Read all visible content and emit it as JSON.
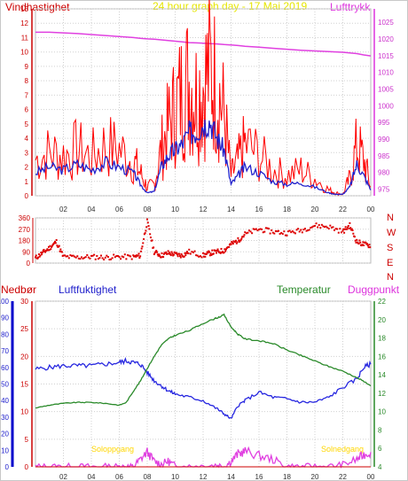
{
  "header": {
    "wind_label": "Vindhastighet",
    "title": "24 hour graph day - 17 Mai 2019",
    "pressure_label": "Lufttrykk"
  },
  "lower_labels": {
    "rain": "Nedbør",
    "humidity": "Luftfuktighet",
    "temperature": "Temperatur",
    "dewpoint": "Duggpunkt"
  },
  "sun_labels": {
    "sunrise": "Soloppgang",
    "sunset": "Solnedgang"
  },
  "colors": {
    "wind": "#ff0000",
    "wind_avg": "#2222cc",
    "pressure": "#e040e0",
    "direction": "#dd0000",
    "humidity": "#2828e0",
    "temperature": "#2a8a2a",
    "dewpoint": "#e040e0",
    "rain": "#0000cc",
    "sun": "#ffd700"
  },
  "chart_data": [
    {
      "type": "line",
      "id": "wind_pressure",
      "title": "24 hour graph day - 17 Mai 2019",
      "ylabel": "Vindhastighet",
      "y2label": "Lufttrykk",
      "xticks": [
        "02",
        "04",
        "06",
        "08",
        "10",
        "12",
        "14",
        "16",
        "18",
        "20",
        "22",
        "00"
      ],
      "ylim": [
        0,
        13
      ],
      "yticks": [
        0,
        1,
        2,
        3,
        4,
        5,
        6,
        7,
        8,
        9,
        10,
        11,
        12,
        13
      ],
      "y2lim": [
        973,
        1029
      ],
      "y2ticks": [
        975,
        980,
        985,
        990,
        995,
        1000,
        1005,
        1010,
        1015,
        1020,
        1025
      ],
      "x": [
        0,
        1,
        2,
        3,
        4,
        5,
        6,
        7,
        7.5,
        8,
        8.5,
        9,
        9.5,
        10,
        10.5,
        11,
        11.5,
        12,
        12.5,
        13,
        13.5,
        14,
        14.5,
        15,
        16,
        17,
        18,
        19,
        20,
        21,
        21.5,
        22,
        22.5,
        23,
        23.5,
        24
      ],
      "series": [
        {
          "name": "Vindhastighet",
          "values": [
            2.5,
            3,
            2.8,
            3.2,
            2.7,
            3.5,
            3.2,
            2.4,
            1.6,
            0.6,
            0.8,
            3.2,
            4.8,
            6,
            7.2,
            8,
            7,
            7.8,
            8.8,
            7.6,
            5.6,
            1.4,
            2.4,
            3.6,
            2.8,
            1.8,
            1.4,
            1.8,
            1.2,
            0.4,
            0.2,
            0.1,
            1.2,
            3.5,
            2.5,
            0.6
          ]
        },
        {
          "name": "Middelvind",
          "values": [
            1.6,
            2,
            1.8,
            2.2,
            1.8,
            2.3,
            2,
            1.6,
            0.8,
            0.2,
            0.3,
            2,
            2.8,
            3.2,
            3.6,
            4.4,
            4.4,
            5,
            5.2,
            4,
            3.2,
            0.8,
            1.4,
            2,
            1.6,
            1,
            0.8,
            0.9,
            0.6,
            0.2,
            0.1,
            0.1,
            0.6,
            2.2,
            1.4,
            0.4
          ]
        },
        {
          "name": "Lufttrykk",
          "values": [
            1022,
            1022,
            1021.8,
            1021.6,
            1021.3,
            1021,
            1020.7,
            1020.4,
            1020.2,
            1020,
            1019.9,
            1019.7,
            1019.5,
            1019.3,
            1019.1,
            1018.9,
            1018.8,
            1018.7,
            1018.6,
            1018.5,
            1018.3,
            1018.2,
            1018,
            1017.8,
            1017.5,
            1017.2,
            1016.9,
            1016.6,
            1016.4,
            1016.2,
            1016.1,
            1016,
            1015.8,
            1015.6,
            1015.2,
            1014.9
          ]
        }
      ]
    },
    {
      "type": "scatter",
      "id": "wind_direction",
      "ylim": [
        0,
        360
      ],
      "yticks": [
        0,
        90,
        180,
        270,
        360
      ],
      "ytick_labels": [
        "0",
        "90",
        "180",
        "270",
        "360"
      ],
      "right_labels": [
        "N",
        "W",
        "S",
        "E",
        "N"
      ],
      "x": [
        0,
        0.5,
        1,
        1.5,
        2,
        3,
        4,
        5,
        6,
        7,
        7.5,
        8,
        8.5,
        9,
        9.5,
        10,
        10.5,
        11,
        12,
        12.5,
        13,
        13.5,
        14,
        14.5,
        15,
        16,
        17,
        18,
        19,
        20,
        21,
        22,
        22.5,
        23,
        23.5,
        24
      ],
      "series": [
        {
          "name": "Vindretning",
          "values": [
            40,
            80,
            120,
            170,
            50,
            45,
            50,
            45,
            50,
            48,
            60,
            330,
            90,
            60,
            80,
            70,
            60,
            90,
            60,
            80,
            90,
            100,
            150,
            180,
            230,
            270,
            250,
            240,
            260,
            300,
            290,
            250,
            300,
            170,
            150,
            140
          ]
        }
      ]
    },
    {
      "type": "line",
      "id": "humidity_temperature",
      "xticks": [
        "02",
        "04",
        "06",
        "08",
        "10",
        "12",
        "14",
        "16",
        "18",
        "20",
        "22",
        "00"
      ],
      "ylim": [
        0,
        30
      ],
      "yticks": [
        0,
        5,
        10,
        15,
        20,
        25,
        30
      ],
      "y_rain_lim": [
        0,
        100
      ],
      "y_rain_ticks": [
        0,
        10,
        20,
        30,
        40,
        50,
        60,
        70,
        80,
        90,
        100
      ],
      "y2lim": [
        4,
        22
      ],
      "y2ticks": [
        4,
        6,
        8,
        10,
        12,
        14,
        16,
        18,
        20,
        22
      ],
      "x": [
        0,
        1,
        2,
        3,
        4,
        5,
        6,
        6.5,
        7,
        7.5,
        8,
        8.5,
        9,
        9.5,
        10,
        11,
        12,
        13,
        13.5,
        14,
        14.5,
        15,
        16,
        17,
        18,
        19,
        20,
        21,
        22,
        23,
        23.5,
        24
      ],
      "series": [
        {
          "name": "Luftfuktighet",
          "values": [
            59,
            60,
            61,
            61,
            61,
            62,
            63,
            64,
            63,
            62,
            57,
            52,
            49,
            46,
            44,
            42,
            40,
            35,
            32,
            29,
            37,
            40,
            45,
            42,
            41,
            39,
            39,
            42,
            48,
            53,
            60,
            62
          ]
        },
        {
          "name": "Temperatur",
          "values": [
            10.4,
            10.7,
            10.9,
            11,
            11,
            10.9,
            10.7,
            11,
            12.2,
            13.3,
            14.7,
            16,
            17.2,
            17.9,
            18.3,
            18.8,
            19.6,
            20.2,
            20.5,
            19.2,
            18.4,
            17.9,
            17.7,
            17.4,
            16.7,
            16.1,
            15.5,
            14.9,
            14.4,
            13.7,
            13.3,
            12.8
          ]
        },
        {
          "name": "Duggpunkt",
          "values": [
            4,
            4,
            4,
            4,
            4,
            4,
            4,
            4,
            4,
            4.8,
            5.6,
            4.6,
            4.3,
            4.6,
            4.1,
            4,
            4.1,
            4.2,
            4,
            4.6,
            5.4,
            5.7,
            5.2,
            4.8,
            4,
            4,
            4,
            4,
            4.2,
            4.8,
            5.3,
            5.6
          ]
        },
        {
          "name": "Nedbør",
          "values": [
            0,
            0,
            0,
            0,
            0,
            0,
            0,
            0,
            0,
            0,
            0,
            0,
            0,
            0,
            0,
            0,
            0,
            0,
            0,
            0,
            0,
            0,
            0,
            0,
            0,
            0,
            0,
            0,
            0,
            0,
            0,
            0
          ]
        }
      ],
      "sunrise_label": "Soloppgang",
      "sunset_label": "Solnedgang"
    }
  ]
}
